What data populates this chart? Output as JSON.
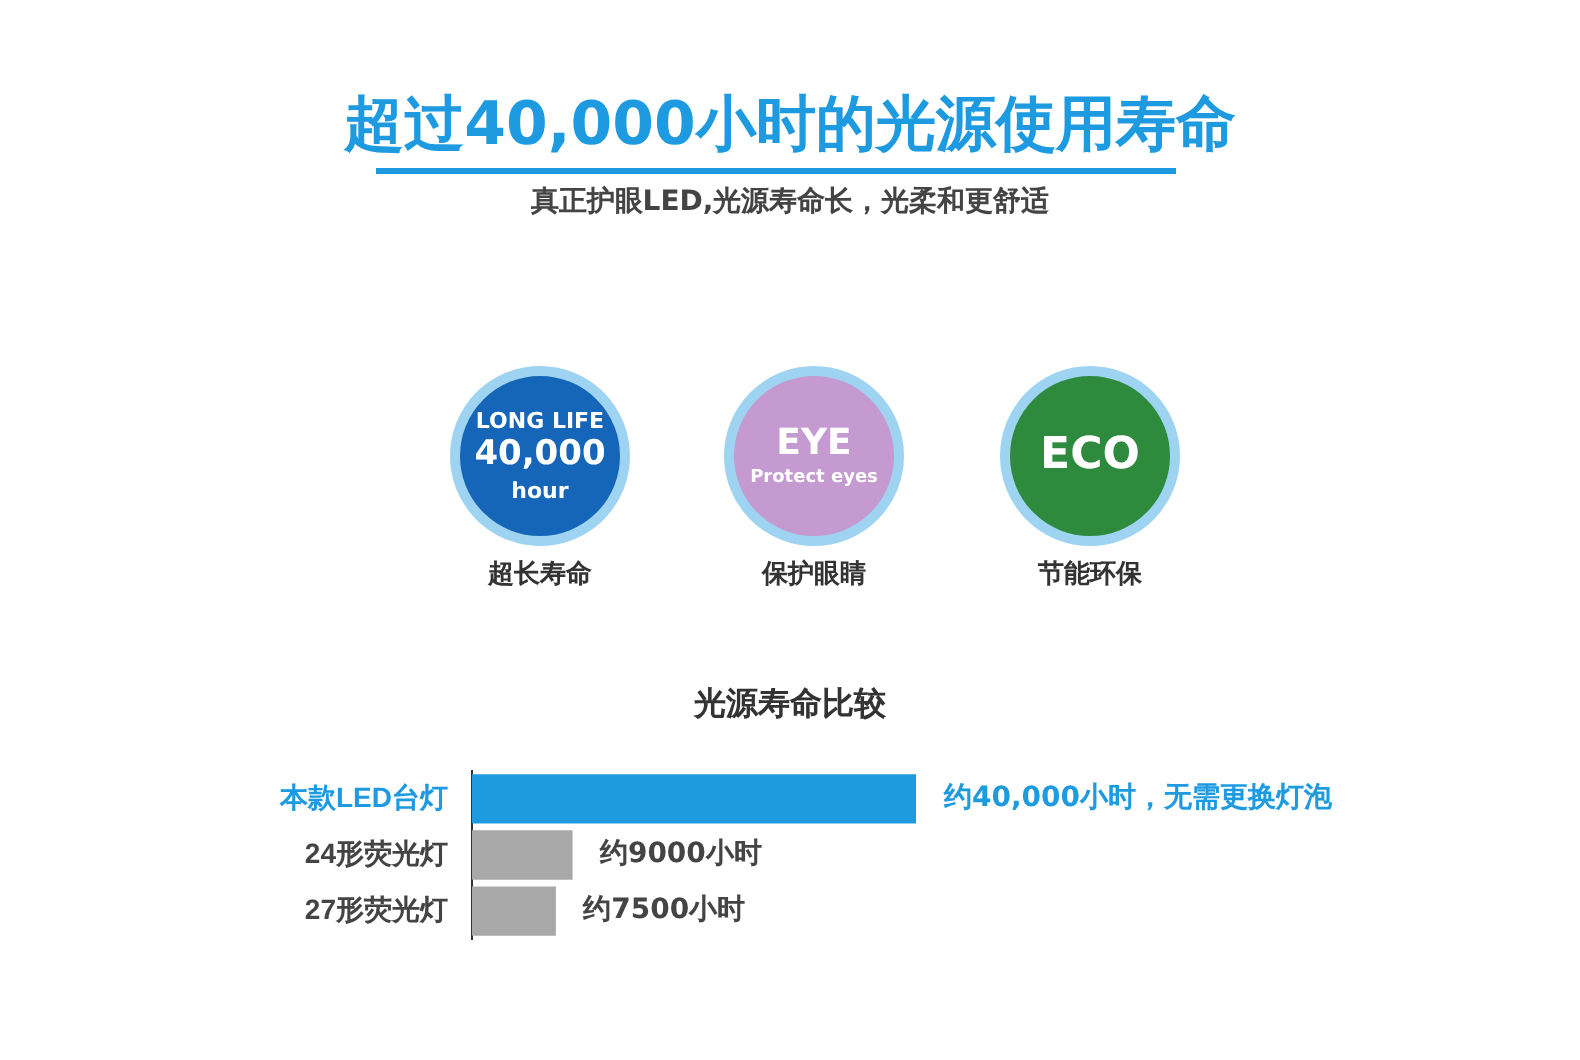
{
  "chart_data": {
    "type": "bar",
    "orientation": "horizontal",
    "title": "超过40,000小时的光源使用寿命",
    "subtitle": "真正护眼LED,光源寿命长，光柔和更舒适",
    "annotations": [
      "LONG LIFE",
      "40,000",
      "hour",
      "超长寿命",
      "EYE",
      "Protect eyes",
      "保护眼睛",
      "ECO",
      "节能环保",
      "光源寿命比较"
    ],
    "categories": [
      "本款LED台灯",
      "24形荧光灯",
      "27形荧光灯"
    ],
    "values": [
      40000,
      9000,
      7500
    ],
    "colors": [
      "#1e9be0",
      "#a8a8a8",
      "#a8a8a8"
    ],
    "value_labels": [
      "约40,000小时，无需更换灯泡",
      "约9000小时",
      "约7500小时"
    ],
    "grid": false,
    "legend": false
  }
}
